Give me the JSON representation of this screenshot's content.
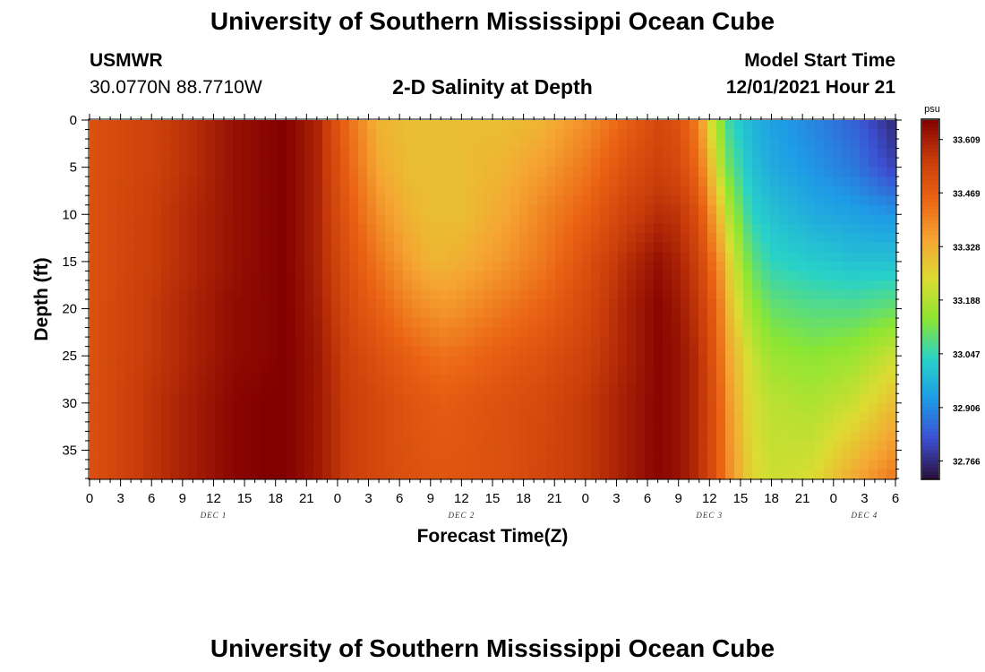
{
  "page": {
    "title": "University of Southern Mississippi Ocean Cube",
    "station": "USMWR",
    "coords": "30.0770N  88.7710W",
    "subtitle": "2-D Salinity at Depth",
    "model_start_label": "Model Start Time",
    "model_start_value": "12/01/2021 Hour 21",
    "footer_title": "University of Southern Mississippi Ocean Cube"
  },
  "colors": {
    "colormap": [
      "#2a0f3c",
      "#3c50d2",
      "#1e9be6",
      "#28d2c8",
      "#8ce632",
      "#dcdc32",
      "#f5a532",
      "#eb6414",
      "#c83c0a",
      "#820000"
    ]
  },
  "chart_data": {
    "type": "heatmap",
    "xlabel": "Forecast Time(Z)",
    "ylabel": "Depth (ft)",
    "colorbar_unit": "psu",
    "x_tick_labels": [
      "0",
      "3",
      "6",
      "9",
      "12",
      "15",
      "18",
      "21",
      "0",
      "3",
      "6",
      "9",
      "12",
      "15",
      "18",
      "21",
      "0",
      "3",
      "6",
      "9",
      "12",
      "15",
      "18",
      "21",
      "0",
      "3",
      "6"
    ],
    "day_labels": [
      {
        "label": "DEC 1",
        "hour": 12
      },
      {
        "label": "DEC 2",
        "hour": 36
      },
      {
        "label": "DEC 3",
        "hour": 60
      },
      {
        "label": "DEC 4",
        "hour": 75
      }
    ],
    "x_range_hours": [
      0,
      78
    ],
    "y_ticks": [
      0,
      5,
      10,
      15,
      20,
      25,
      30,
      35
    ],
    "y_range_ft": [
      0,
      38
    ],
    "colorbar_ticks": [
      "33.609",
      "33.469",
      "33.328",
      "33.188",
      "33.047",
      "32.906",
      "32.766"
    ],
    "value_range": [
      32.72,
      33.66
    ],
    "time_hours": [
      0,
      6,
      10,
      14,
      17,
      19,
      22,
      25,
      28,
      31,
      33,
      34,
      36,
      40,
      44,
      48,
      52,
      55,
      57,
      59,
      60,
      61,
      62,
      64,
      66,
      70,
      74,
      78
    ],
    "depths_ft": [
      0,
      5,
      10,
      15,
      20,
      25,
      30,
      38
    ],
    "salinity_psu": [
      [
        33.5,
        33.5,
        33.5,
        33.5,
        33.5,
        33.5,
        33.5,
        33.5
      ],
      [
        33.54,
        33.54,
        33.55,
        33.55,
        33.56,
        33.56,
        33.57,
        33.57
      ],
      [
        33.58,
        33.58,
        33.59,
        33.59,
        33.6,
        33.6,
        33.61,
        33.61
      ],
      [
        33.63,
        33.63,
        33.63,
        33.63,
        33.64,
        33.64,
        33.65,
        33.65
      ],
      [
        33.65,
        33.65,
        33.65,
        33.65,
        33.65,
        33.65,
        33.66,
        33.66
      ],
      [
        33.66,
        33.66,
        33.66,
        33.66,
        33.66,
        33.66,
        33.66,
        33.66
      ],
      [
        33.6,
        33.6,
        33.6,
        33.6,
        33.61,
        33.62,
        33.62,
        33.62
      ],
      [
        33.44,
        33.46,
        33.48,
        33.5,
        33.52,
        33.54,
        33.55,
        33.55
      ],
      [
        33.32,
        33.34,
        33.38,
        33.42,
        33.46,
        33.5,
        33.52,
        33.52
      ],
      [
        33.3,
        33.3,
        33.32,
        33.35,
        33.4,
        33.46,
        33.49,
        33.5
      ],
      [
        33.3,
        33.3,
        33.3,
        33.32,
        33.38,
        33.44,
        33.48,
        33.49
      ],
      [
        33.3,
        33.3,
        33.3,
        33.32,
        33.37,
        33.43,
        33.47,
        33.49
      ],
      [
        33.3,
        33.3,
        33.3,
        33.33,
        33.38,
        33.44,
        33.48,
        33.49
      ],
      [
        33.3,
        33.32,
        33.34,
        33.37,
        33.42,
        33.47,
        33.5,
        33.5
      ],
      [
        33.32,
        33.36,
        33.4,
        33.42,
        33.46,
        33.5,
        33.52,
        33.53
      ],
      [
        33.38,
        33.42,
        33.46,
        33.5,
        33.52,
        33.54,
        33.56,
        33.56
      ],
      [
        33.46,
        33.5,
        33.54,
        33.58,
        33.6,
        33.6,
        33.61,
        33.61
      ],
      [
        33.52,
        33.54,
        33.58,
        33.63,
        33.65,
        33.65,
        33.65,
        33.65
      ],
      [
        33.5,
        33.52,
        33.57,
        33.6,
        33.62,
        33.63,
        33.63,
        33.63
      ],
      [
        33.4,
        33.44,
        33.5,
        33.54,
        33.56,
        33.58,
        33.58,
        33.58
      ],
      [
        33.25,
        33.32,
        33.4,
        33.46,
        33.5,
        33.52,
        33.53,
        33.53
      ],
      [
        33.15,
        33.2,
        33.3,
        33.38,
        33.42,
        33.44,
        33.46,
        33.46
      ],
      [
        33.05,
        33.1,
        33.18,
        33.26,
        33.3,
        33.34,
        33.36,
        33.38
      ],
      [
        32.98,
        33.0,
        33.04,
        33.1,
        33.16,
        33.22,
        33.24,
        33.26
      ],
      [
        32.94,
        32.96,
        33.0,
        33.04,
        33.1,
        33.16,
        33.2,
        33.22
      ],
      [
        32.9,
        32.92,
        32.96,
        33.02,
        33.08,
        33.14,
        33.18,
        33.24
      ],
      [
        32.85,
        32.88,
        32.94,
        33.0,
        33.08,
        33.16,
        33.22,
        33.34
      ],
      [
        32.76,
        32.8,
        32.92,
        33.0,
        33.1,
        33.22,
        33.3,
        33.42
      ]
    ]
  }
}
